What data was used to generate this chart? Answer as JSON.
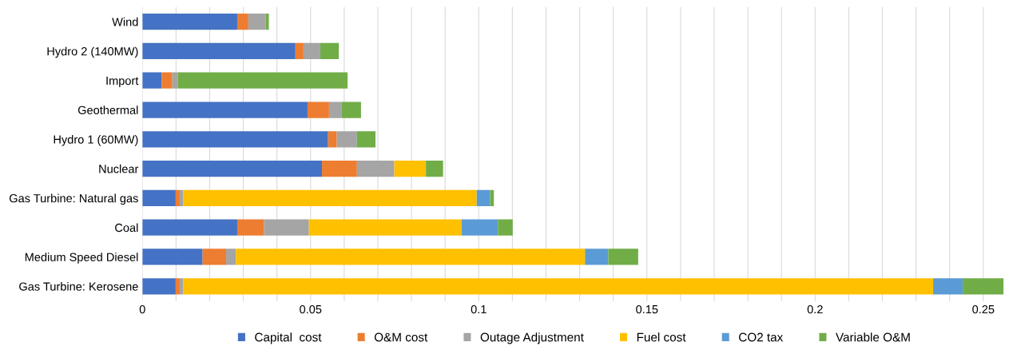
{
  "chart_data": {
    "type": "bar",
    "orientation": "horizontal",
    "stacked": true,
    "categories": [
      "Wind",
      "Hydro 2 (140MW)",
      "Import",
      "Geothermal",
      "Hydro 1 (60MW)",
      "Nuclear",
      "Gas Turbine: Natural gas",
      "Coal",
      "Medium Speed Diesel",
      "Gas Turbine: Kerosene"
    ],
    "series": [
      {
        "name": "Capital  cost",
        "color": "#4472c4",
        "values": [
          0.0282,
          0.0455,
          0.0057,
          0.0491,
          0.0552,
          0.0534,
          0.0099,
          0.0282,
          0.0179,
          0.0099
        ]
      },
      {
        "name": "O&M cost",
        "color": "#ed7d31",
        "values": [
          0.0033,
          0.0024,
          0.0032,
          0.0064,
          0.0026,
          0.0104,
          0.0012,
          0.008,
          0.007,
          0.0012
        ]
      },
      {
        "name": "Outage Adjustment",
        "color": "#a5a5a5",
        "values": [
          0.0052,
          0.005,
          0.0016,
          0.0038,
          0.006,
          0.0111,
          0.0011,
          0.0133,
          0.0029,
          0.0011
        ]
      },
      {
        "name": "Fuel cost",
        "color": "#ffc000",
        "values": [
          0,
          0,
          0,
          0,
          0,
          0.0094,
          0.0872,
          0.0454,
          0.1038,
          0.2229
        ]
      },
      {
        "name": "CO2 tax",
        "color": "#5b9bd5",
        "values": [
          0,
          0,
          0,
          0,
          0,
          0,
          0.004,
          0.0108,
          0.0069,
          0.0088
        ]
      },
      {
        "name": "Variable O&M",
        "color": "#70ad47",
        "values": [
          0.0009,
          0.0055,
          0.0505,
          0.0057,
          0.0055,
          0.0051,
          0.0011,
          0.0044,
          0.0089,
          0.0121
        ]
      }
    ],
    "xlim": [
      0,
      0.257
    ],
    "xticks": [
      0,
      {
        "value": 0.01,
        "label": null
      },
      {
        "value": 0.02,
        "label": null
      },
      {
        "value": 0.03,
        "label": null
      },
      {
        "value": 0.04,
        "label": null
      },
      0.05,
      {
        "value": 0.06,
        "label": null
      },
      {
        "value": 0.07,
        "label": null
      },
      {
        "value": 0.08,
        "label": null
      },
      {
        "value": 0.09,
        "label": null
      },
      0.1,
      {
        "value": 0.11,
        "label": null
      },
      {
        "value": 0.12,
        "label": null
      },
      {
        "value": 0.13,
        "label": null
      },
      {
        "value": 0.14,
        "label": null
      },
      0.15,
      {
        "value": 0.16,
        "label": null
      },
      {
        "value": 0.17,
        "label": null
      },
      {
        "value": 0.18,
        "label": null
      },
      {
        "value": 0.19,
        "label": null
      },
      0.2,
      {
        "value": 0.21,
        "label": null
      },
      {
        "value": 0.22,
        "label": null
      },
      {
        "value": 0.23,
        "label": null
      },
      {
        "value": 0.24,
        "label": null
      },
      0.25
    ],
    "grid": "x",
    "legend": "bottom"
  }
}
